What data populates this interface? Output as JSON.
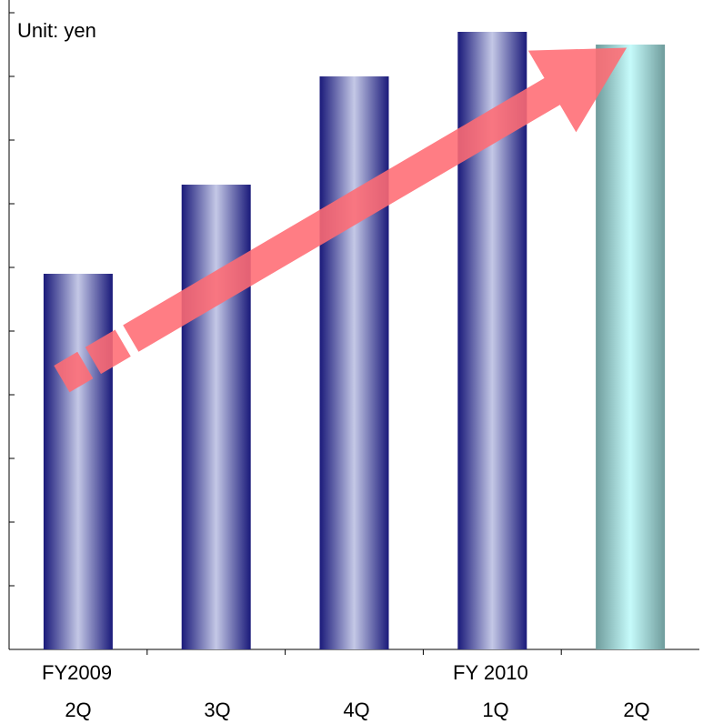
{
  "chart_data": {
    "type": "bar",
    "unit_label": "Unit: yen",
    "categories": [
      "2Q",
      "3Q",
      "4Q",
      "1Q",
      "2Q"
    ],
    "fiscal_year_labels": [
      "FY2009",
      "FY 2010"
    ],
    "values": [
      59,
      73,
      90,
      97,
      95
    ],
    "ylim": [
      0,
      100
    ],
    "y_tick_count": 10,
    "y_tick_labels_visible": false,
    "xlabel": "",
    "ylabel": "",
    "bar_colors": {
      "actual": "#1a1a7a",
      "actual_highlight": "#c4c8e6",
      "forecast": "#6f9c9c",
      "forecast_highlight": "#c6fbfb"
    },
    "forecast_index": 4,
    "trend_arrow": {
      "color": "#ff6b73",
      "direction": "up-right"
    }
  }
}
